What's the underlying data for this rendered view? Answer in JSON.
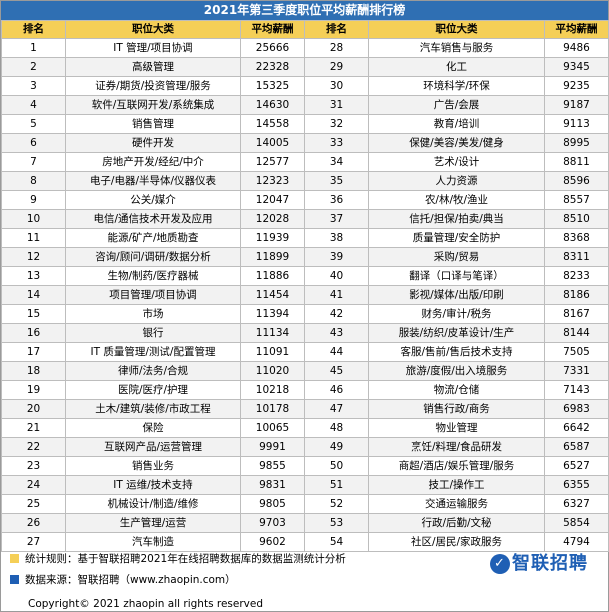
{
  "title": "2021年第三季度职位平均薪酬排行榜",
  "headers": {
    "rank": "排名",
    "category": "职位大类",
    "salary": "平均薪酬"
  },
  "rows": [
    {
      "left": {
        "rank": "1",
        "category": "IT 管理/项目协调",
        "salary": "25666"
      },
      "right": {
        "rank": "28",
        "category": "汽车销售与服务",
        "salary": "9486"
      }
    },
    {
      "left": {
        "rank": "2",
        "category": "高级管理",
        "salary": "22328"
      },
      "right": {
        "rank": "29",
        "category": "化工",
        "salary": "9345"
      }
    },
    {
      "left": {
        "rank": "3",
        "category": "证券/期货/投资管理/服务",
        "salary": "15325"
      },
      "right": {
        "rank": "30",
        "category": "环境科学/环保",
        "salary": "9235"
      }
    },
    {
      "left": {
        "rank": "4",
        "category": "软件/互联网开发/系统集成",
        "salary": "14630"
      },
      "right": {
        "rank": "31",
        "category": "广告/会展",
        "salary": "9187"
      }
    },
    {
      "left": {
        "rank": "5",
        "category": "销售管理",
        "salary": "14558"
      },
      "right": {
        "rank": "32",
        "category": "教育/培训",
        "salary": "9113"
      }
    },
    {
      "left": {
        "rank": "6",
        "category": "硬件开发",
        "salary": "14005"
      },
      "right": {
        "rank": "33",
        "category": "保健/美容/美发/健身",
        "salary": "8995"
      }
    },
    {
      "left": {
        "rank": "7",
        "category": "房地产开发/经纪/中介",
        "salary": "12577"
      },
      "right": {
        "rank": "34",
        "category": "艺术/设计",
        "salary": "8811"
      }
    },
    {
      "left": {
        "rank": "8",
        "category": "电子/电器/半导体/仪器仪表",
        "salary": "12323"
      },
      "right": {
        "rank": "35",
        "category": "人力资源",
        "salary": "8596"
      }
    },
    {
      "left": {
        "rank": "9",
        "category": "公关/媒介",
        "salary": "12047"
      },
      "right": {
        "rank": "36",
        "category": "农/林/牧/渔业",
        "salary": "8557"
      }
    },
    {
      "left": {
        "rank": "10",
        "category": "电信/通信技术开发及应用",
        "salary": "12028"
      },
      "right": {
        "rank": "37",
        "category": "信托/担保/拍卖/典当",
        "salary": "8510"
      }
    },
    {
      "left": {
        "rank": "11",
        "category": "能源/矿产/地质勘查",
        "salary": "11939"
      },
      "right": {
        "rank": "38",
        "category": "质量管理/安全防护",
        "salary": "8368"
      }
    },
    {
      "left": {
        "rank": "12",
        "category": "咨询/顾问/调研/数据分析",
        "salary": "11899"
      },
      "right": {
        "rank": "39",
        "category": "采购/贸易",
        "salary": "8311"
      }
    },
    {
      "left": {
        "rank": "13",
        "category": "生物/制药/医疗器械",
        "salary": "11886"
      },
      "right": {
        "rank": "40",
        "category": "翻译（口译与笔译）",
        "salary": "8233"
      }
    },
    {
      "left": {
        "rank": "14",
        "category": "项目管理/项目协调",
        "salary": "11454"
      },
      "right": {
        "rank": "41",
        "category": "影视/媒体/出版/印刷",
        "salary": "8186"
      }
    },
    {
      "left": {
        "rank": "15",
        "category": "市场",
        "salary": "11394"
      },
      "right": {
        "rank": "42",
        "category": "财务/审计/税务",
        "salary": "8167"
      }
    },
    {
      "left": {
        "rank": "16",
        "category": "银行",
        "salary": "11134"
      },
      "right": {
        "rank": "43",
        "category": "服装/纺织/皮革设计/生产",
        "salary": "8144"
      }
    },
    {
      "left": {
        "rank": "17",
        "category": "IT 质量管理/测试/配置管理",
        "salary": "11091"
      },
      "right": {
        "rank": "44",
        "category": "客服/售前/售后技术支持",
        "salary": "7505"
      }
    },
    {
      "left": {
        "rank": "18",
        "category": "律师/法务/合规",
        "salary": "11020"
      },
      "right": {
        "rank": "45",
        "category": "旅游/度假/出入境服务",
        "salary": "7331"
      }
    },
    {
      "left": {
        "rank": "19",
        "category": "医院/医疗/护理",
        "salary": "10218"
      },
      "right": {
        "rank": "46",
        "category": "物流/仓储",
        "salary": "7143"
      }
    },
    {
      "left": {
        "rank": "20",
        "category": "土木/建筑/装修/市政工程",
        "salary": "10178"
      },
      "right": {
        "rank": "47",
        "category": "销售行政/商务",
        "salary": "6983"
      }
    },
    {
      "left": {
        "rank": "21",
        "category": "保险",
        "salary": "10065"
      },
      "right": {
        "rank": "48",
        "category": "物业管理",
        "salary": "6642"
      }
    },
    {
      "left": {
        "rank": "22",
        "category": "互联网产品/运营管理",
        "salary": "9991"
      },
      "right": {
        "rank": "49",
        "category": "烹饪/料理/食品研发",
        "salary": "6587"
      }
    },
    {
      "left": {
        "rank": "23",
        "category": "销售业务",
        "salary": "9855"
      },
      "right": {
        "rank": "50",
        "category": "商超/酒店/娱乐管理/服务",
        "salary": "6527"
      }
    },
    {
      "left": {
        "rank": "24",
        "category": "IT 运维/技术支持",
        "salary": "9831"
      },
      "right": {
        "rank": "51",
        "category": "技工/操作工",
        "salary": "6355"
      }
    },
    {
      "left": {
        "rank": "25",
        "category": "机械设计/制造/维修",
        "salary": "9805"
      },
      "right": {
        "rank": "52",
        "category": "交通运输服务",
        "salary": "6327"
      }
    },
    {
      "left": {
        "rank": "26",
        "category": "生产管理/运营",
        "salary": "9703"
      },
      "right": {
        "rank": "53",
        "category": "行政/后勤/文秘",
        "salary": "5854"
      }
    },
    {
      "left": {
        "rank": "27",
        "category": "汽车制造",
        "salary": "9602"
      },
      "right": {
        "rank": "54",
        "category": "社区/居民/家政服务",
        "salary": "4794"
      }
    }
  ],
  "footer": {
    "note1": "统计规则：基于智联招聘2021年在线招聘数据库的数据监测统计分析",
    "note1_color": "#f5cf57",
    "note2": "数据来源：智联招聘（www.zhaopin.com）",
    "note2_color": "#1f5fb4",
    "copyright": "Copyright© 2021 zhaopin all rights reserved",
    "logo_text": "智联招聘",
    "logo_color": "#1f5fb4"
  },
  "colors": {
    "title_bg": "#2f6fb3",
    "header_bg": "#f5cf57",
    "stripe": "#f2f2f2"
  }
}
